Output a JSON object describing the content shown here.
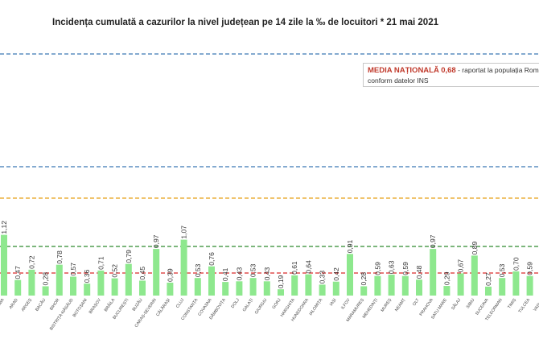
{
  "title": "Incidența cumulată a cazurilor la nivel județean pe 14 zile la ‰ de locuitori *  21 mai 2021",
  "media_box": {
    "label": "MEDIA NAȚIONALĂ",
    "value": "0,68",
    "text1": " - raportat la populația Români",
    "text2": "conform datelor INS"
  },
  "colors": {
    "bar": "#8ee88e",
    "bar_border": "#6fd66f",
    "line_green": "#2e8b2e",
    "line_red": "#d92b2b",
    "line_orange": "#e6a117",
    "line_blue": "#3a78b5"
  },
  "chart_data": {
    "type": "bar",
    "title": "Incidența cumulată a cazurilor la nivel județean pe 14 zile la ‰ de locuitori *  21 mai 2021",
    "categories": [
      "ALBA",
      "ARAD",
      "ARGEȘ",
      "BACĂU",
      "BIHOR",
      "BISTRIȚA-NĂSĂUD",
      "BOTOȘANI",
      "BRAȘOV",
      "BRĂILA",
      "BUCUREȘTI",
      "BUZĂU",
      "CARAȘ-SEVERIN",
      "CĂLĂRAȘI",
      "CLUJ",
      "CONSTANȚA",
      "COVASNA",
      "DÂMBOVIȚA",
      "DOLJ",
      "GALAȚI",
      "GIURGIU",
      "GORJ",
      "HARGHITA",
      "HUNEDOARA",
      "IALOMIȚA",
      "IAȘI",
      "ILFOV",
      "MARAMUREȘ",
      "MEHEDINȚI",
      "MUREȘ",
      "NEAMȚ",
      "OLT",
      "PRAHOVA",
      "SATU MARE",
      "SĂLAJ",
      "SIBIU",
      "SUCEAVA",
      "TELEORMAN",
      "TIMIȘ",
      "TULCEA",
      "VASLUI"
    ],
    "values": [
      1.12,
      0.47,
      0.72,
      0.28,
      0.78,
      0.57,
      0.36,
      0.71,
      0.52,
      0.79,
      0.45,
      0.97,
      0.39,
      1.07,
      0.53,
      0.76,
      0.41,
      0.43,
      0.53,
      0.43,
      0.19,
      0.61,
      0.64,
      0.33,
      0.42,
      0.91,
      0.28,
      0.59,
      0.63,
      0.59,
      0.48,
      0.97,
      0.29,
      0.67,
      0.89,
      0.27,
      0.53,
      0.7,
      0.59,
      0.6
    ],
    "value_labels": [
      "1,12",
      "0,47",
      "0,72",
      "0,28",
      "0,78",
      "0,57",
      "0,36",
      "0,71",
      "0,52",
      "0,79",
      "0,45",
      "0,97",
      "0,39",
      "1,07",
      "0,53",
      "0,76",
      "0,41",
      "0,43",
      "0,53",
      "0,43",
      "0,19",
      "0,61",
      "0,64",
      "0,33",
      "0,42",
      "0,91",
      "0,28",
      "0,59",
      "0,63",
      "0,59",
      "0,48",
      "0,97",
      "0,29",
      "0,67",
      "0,89",
      "0,27",
      "0,53",
      "0,70",
      "0,59",
      ""
    ],
    "reference_lines": [
      {
        "value": 6.0,
        "color": "#3a78b5"
      },
      {
        "value": 3.0,
        "color": "#3a78b5"
      },
      {
        "value": 1.5,
        "color": "#e6a117"
      },
      {
        "value": 1.0,
        "color": "#2e8b2e"
      },
      {
        "value": 0.68,
        "color": "#d92b2b"
      }
    ],
    "ylim": [
      0,
      6.0
    ]
  }
}
